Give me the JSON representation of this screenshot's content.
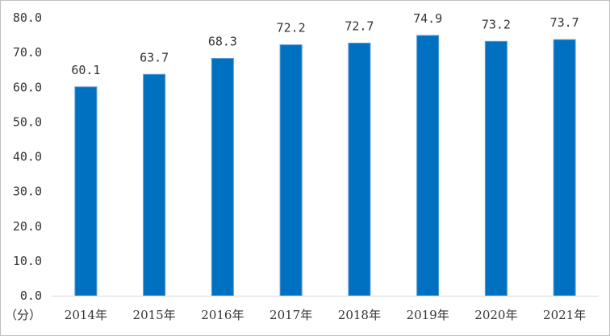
{
  "chart_data": {
    "type": "bar",
    "title": "",
    "xlabel": "",
    "ylabel": "",
    "unit_label": "（分）",
    "categories": [
      "2014年",
      "2015年",
      "2016年",
      "2017年",
      "2018年",
      "2019年",
      "2020年",
      "2021年"
    ],
    "values": [
      60.1,
      63.7,
      68.3,
      72.2,
      72.7,
      74.9,
      73.2,
      73.7
    ],
    "data_labels": [
      "60.1",
      "63.7",
      "68.3",
      "72.2",
      "72.7",
      "74.9",
      "73.2",
      "73.7"
    ],
    "ylim": [
      0,
      80
    ],
    "yticks": [
      "0.0",
      "10.0",
      "20.0",
      "30.0",
      "40.0",
      "50.0",
      "60.0",
      "70.0",
      "80.0"
    ],
    "grid": false,
    "legend": "none",
    "bar_color": "#0070C0",
    "bar_edge_color": "#5B9BD5"
  }
}
